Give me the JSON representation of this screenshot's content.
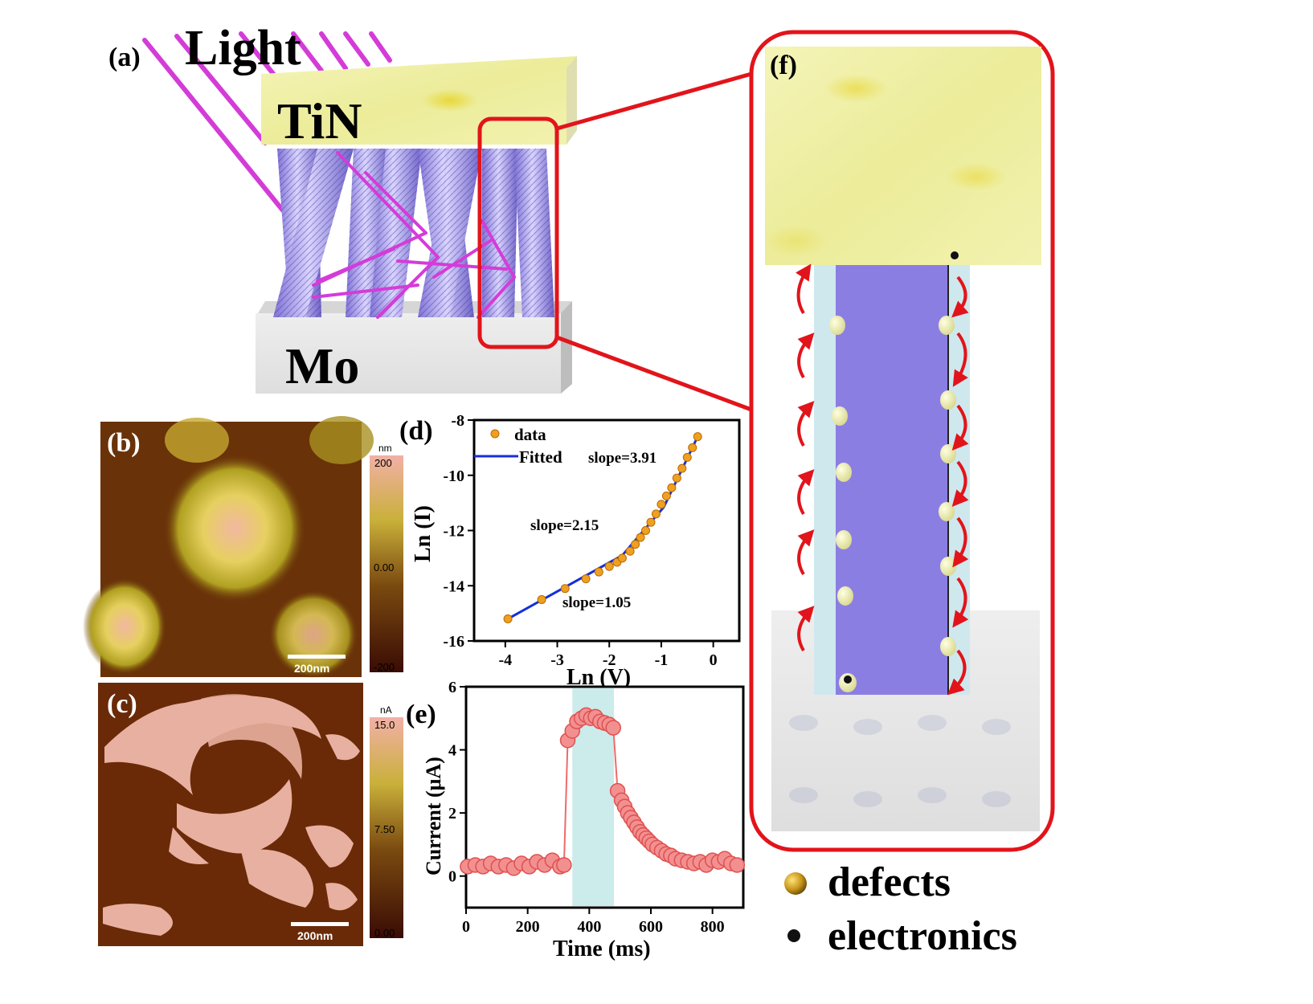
{
  "panel_a": {
    "label": "(a)",
    "light": "Light",
    "top_layer": "TiN",
    "bottom_layer": "Mo"
  },
  "panel_b": {
    "label": "(b)",
    "unit": "nm",
    "colorbar_ticks": [
      "200",
      "0.00",
      "-200"
    ],
    "scalebar": "200nm"
  },
  "panel_c": {
    "label": "(c)",
    "unit": "nA",
    "colorbar_ticks": [
      "15.0",
      "7.50",
      "0.00"
    ],
    "scalebar": "200nm"
  },
  "panel_f": {
    "label": "(f)"
  },
  "legend": {
    "defects": "defects",
    "electronics": "electronics"
  },
  "colors": {
    "accent_red": "#e2141b",
    "light_ray": "#d43cd8",
    "nanorod": "#9b8fe6",
    "tin": "#ecec9c",
    "mo": "#e5e5e5",
    "data_orange": "#f0a020",
    "fit_blue": "#1530d8",
    "current_red": "#f06a6a",
    "highlight": "#bfe6e6"
  },
  "chart_data": [
    {
      "panel": "(d)",
      "type": "scatter",
      "xlabel": "Ln (V)",
      "ylabel": "Ln (I)",
      "xlim": [
        -4.6,
        0.5
      ],
      "ylim": [
        -16,
        -8
      ],
      "xticks": [
        -4,
        -3,
        -2,
        -1,
        0
      ],
      "yticks": [
        -16,
        -14,
        -12,
        -10,
        -8
      ],
      "legend": [
        "data",
        "Fitted"
      ],
      "series": [
        {
          "name": "data",
          "x": [
            -3.95,
            -3.3,
            -2.85,
            -2.45,
            -2.2,
            -2.0,
            -1.85,
            -1.75,
            -1.6,
            -1.5,
            -1.4,
            -1.3,
            -1.2,
            -1.1,
            -1.0,
            -0.9,
            -0.8,
            -0.7,
            -0.6,
            -0.5,
            -0.4,
            -0.3
          ],
          "y": [
            -15.2,
            -14.5,
            -14.1,
            -13.75,
            -13.5,
            -13.3,
            -13.15,
            -13.0,
            -12.75,
            -12.5,
            -12.25,
            -12.0,
            -11.7,
            -11.4,
            -11.05,
            -10.75,
            -10.45,
            -10.1,
            -9.75,
            -9.35,
            -9.0,
            -8.6
          ]
        },
        {
          "name": "Fitted",
          "segments": [
            {
              "x": [
                -3.95,
                -1.75
              ],
              "y": [
                -15.2,
                -12.9
              ]
            },
            {
              "x": [
                -1.75,
                -0.95
              ],
              "y": [
                -12.9,
                -11.15
              ]
            },
            {
              "x": [
                -0.95,
                -0.3
              ],
              "y": [
                -11.15,
                -8.6
              ]
            }
          ]
        }
      ],
      "annotations": [
        "slope=3.91",
        "slope=2.15",
        "slope=1.05"
      ]
    },
    {
      "panel": "(e)",
      "type": "line",
      "xlabel": "Time (ms)",
      "ylabel": "Current (μA)",
      "xlim": [
        0,
        900
      ],
      "ylim": [
        -1,
        6
      ],
      "xticks": [
        0,
        200,
        400,
        600,
        800
      ],
      "yticks": [
        0,
        2,
        4,
        6
      ],
      "highlight_range": [
        345,
        480
      ],
      "series": [
        {
          "name": "current",
          "x": [
            5,
            30,
            55,
            80,
            105,
            130,
            155,
            180,
            205,
            230,
            255,
            280,
            305,
            318,
            330,
            345,
            360,
            375,
            390,
            405,
            420,
            435,
            450,
            465,
            478,
            492,
            505,
            515,
            525,
            535,
            545,
            555,
            565,
            575,
            585,
            595,
            605,
            620,
            635,
            650,
            665,
            680,
            700,
            720,
            740,
            760,
            780,
            800,
            820,
            840,
            860,
            880
          ],
          "y": [
            0.3,
            0.35,
            0.3,
            0.4,
            0.3,
            0.35,
            0.25,
            0.4,
            0.3,
            0.45,
            0.35,
            0.5,
            0.3,
            0.35,
            4.3,
            4.6,
            4.9,
            5.0,
            5.1,
            5.0,
            5.05,
            4.9,
            4.85,
            4.8,
            4.7,
            2.7,
            2.4,
            2.2,
            2.0,
            1.85,
            1.7,
            1.55,
            1.4,
            1.3,
            1.2,
            1.1,
            1.0,
            0.9,
            0.8,
            0.7,
            0.65,
            0.55,
            0.5,
            0.45,
            0.4,
            0.45,
            0.35,
            0.5,
            0.45,
            0.55,
            0.4,
            0.35
          ]
        }
      ]
    }
  ]
}
